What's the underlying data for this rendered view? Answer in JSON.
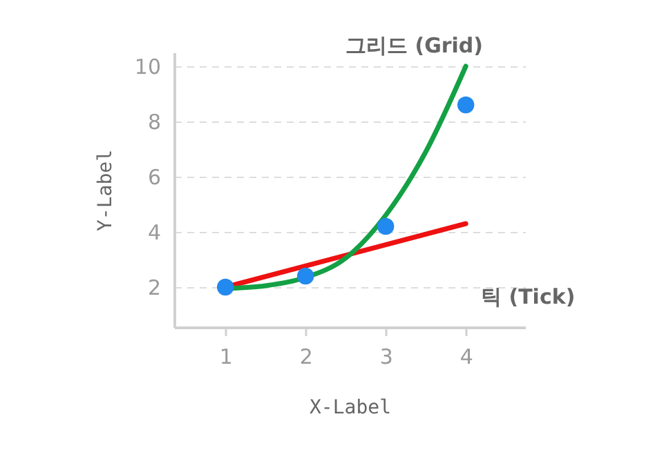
{
  "chart_data": {
    "type": "scatter",
    "xlabel": "X-Label",
    "ylabel": "Y-Label",
    "annotations": [
      "그리드 (Grid)",
      "틱 (Tick)"
    ],
    "series": [
      {
        "color": "#2289ee",
        "x": [
          1,
          2,
          3,
          4
        ],
        "values": [
          2,
          2.4,
          4.2,
          8.6
        ],
        "marker": "circle"
      },
      {
        "type": "line",
        "color": "#ee1111",
        "x": [
          1,
          4
        ],
        "values": [
          2,
          4.3
        ]
      },
      {
        "type": "line",
        "color": "#14a044",
        "x": [
          1,
          1.5,
          2,
          2.5,
          3,
          3.5,
          4
        ],
        "values": [
          1.95,
          2.05,
          2.35,
          3.05,
          4.6,
          6.9,
          10.0
        ]
      }
    ],
    "xlim": [
      0.36,
      4.74
    ],
    "ylim": [
      0.55,
      10.5
    ],
    "xticks": [
      1,
      2,
      3,
      4
    ],
    "yticks": [
      2,
      4,
      6,
      8,
      10
    ],
    "grid": "y"
  }
}
